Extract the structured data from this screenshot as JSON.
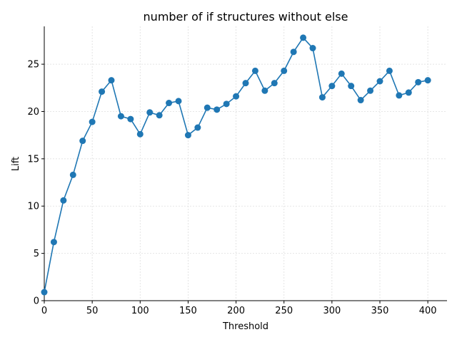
{
  "chart_data": {
    "type": "line",
    "title": "number of if structures without else",
    "xlabel": "Threshold",
    "ylabel": "Lift",
    "xlim": [
      0,
      420
    ],
    "ylim": [
      0,
      29
    ],
    "xticks": [
      0,
      50,
      100,
      150,
      200,
      250,
      300,
      350,
      400
    ],
    "yticks": [
      0,
      5,
      10,
      15,
      20,
      25
    ],
    "grid": true,
    "color": "#1f77b4",
    "series": [
      {
        "x": [
          0,
          10,
          20,
          30,
          40,
          50,
          60,
          70,
          80,
          90,
          100,
          110,
          120,
          130,
          140,
          150,
          160,
          170,
          180,
          190,
          200,
          210,
          220,
          230,
          240,
          250,
          260,
          270,
          280,
          290,
          300,
          310,
          320,
          330,
          340,
          350,
          360,
          370,
          380,
          390,
          400
        ],
        "y": [
          0.9,
          6.2,
          10.6,
          13.3,
          16.9,
          18.9,
          22.1,
          23.3,
          19.5,
          19.2,
          17.6,
          19.9,
          19.6,
          20.9,
          21.1,
          17.5,
          18.3,
          20.4,
          20.2,
          20.8,
          21.6,
          23.0,
          24.3,
          22.2,
          23.0,
          24.3,
          26.3,
          27.8,
          26.7,
          21.5,
          22.7,
          24.0,
          22.7,
          21.2,
          22.2,
          23.2,
          24.3,
          21.7,
          22.0,
          23.1,
          23.3
        ]
      }
    ]
  }
}
